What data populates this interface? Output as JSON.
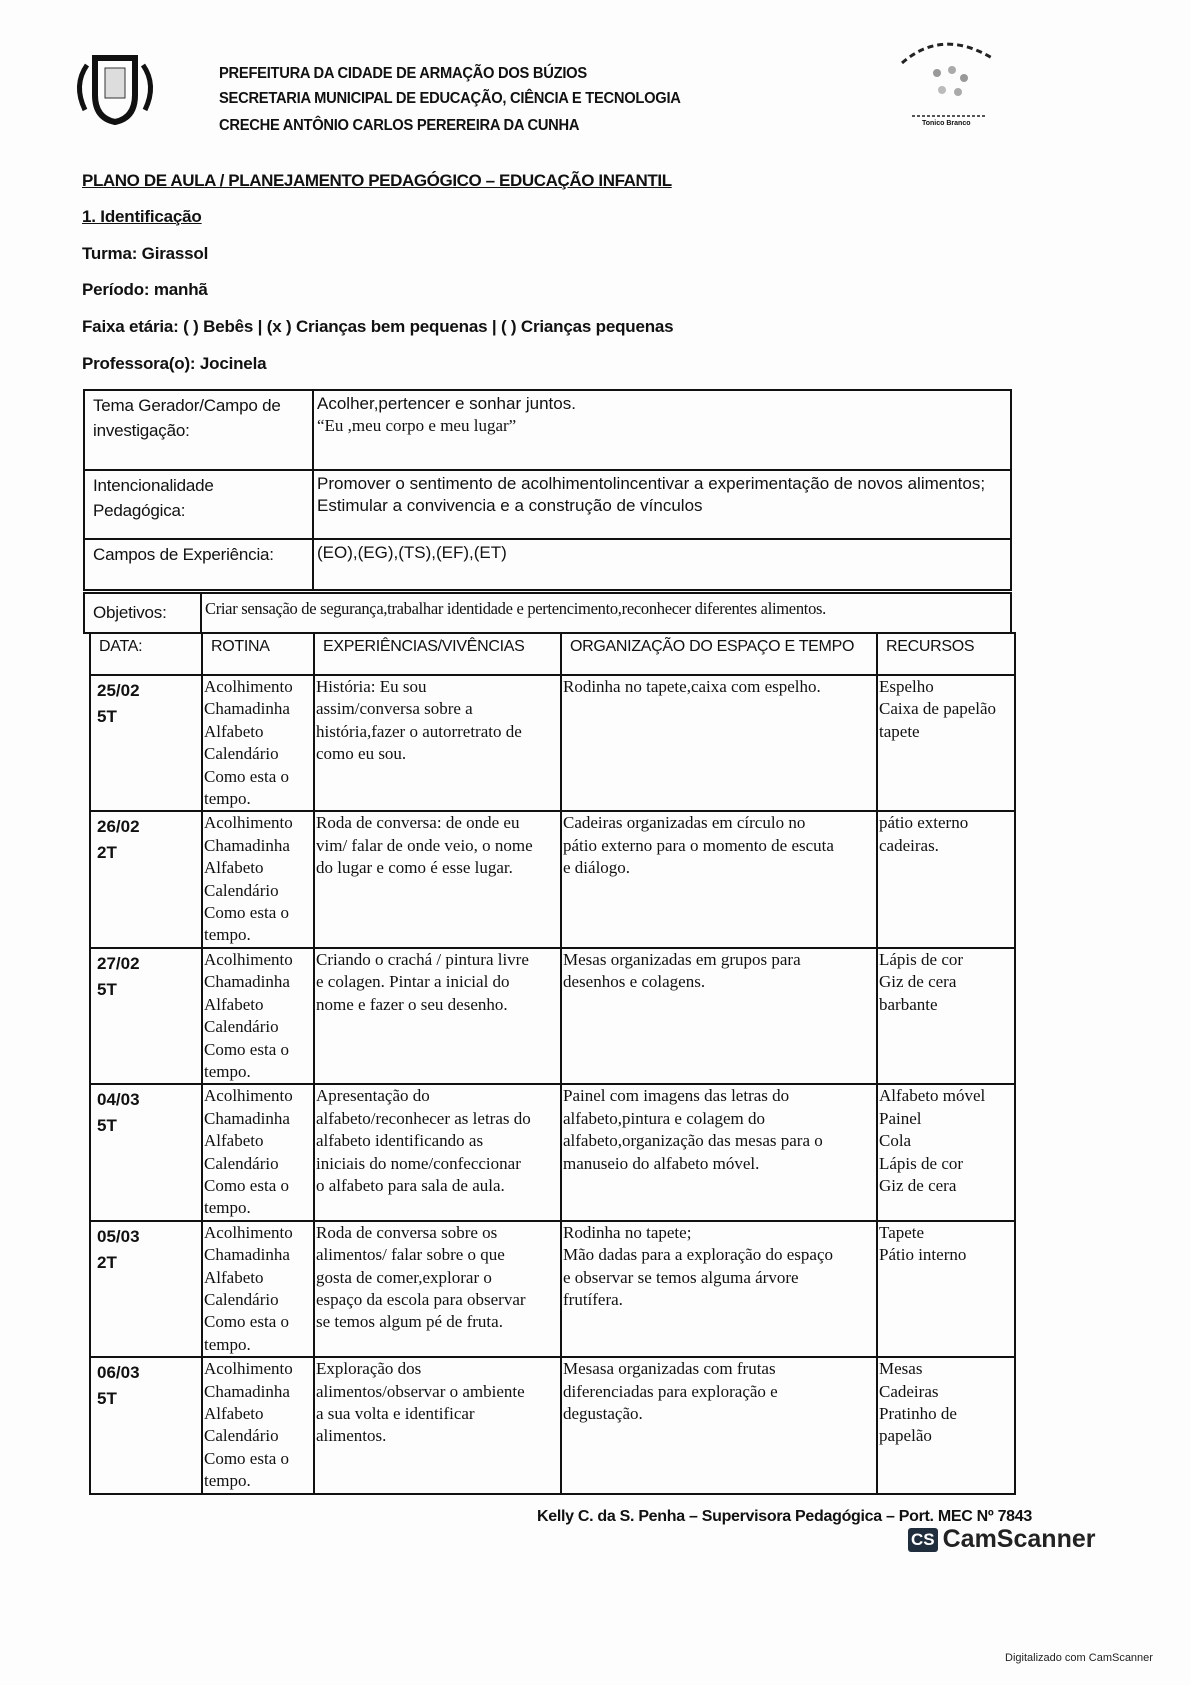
{
  "header": {
    "lines": [
      "PREFEITURA DA CIDADE DE ARMAÇÃO DOS BÚZIOS",
      "SECRETARIA MUNICIPAL DE EDUCAÇÃO, CIÊNCIA E TECNOLOGIA",
      "CRECHE ANTÔNIO CARLOS PEREREIRA DA CUNHA"
    ],
    "right_logo_text": "Tonico Branco"
  },
  "title": "PLANO DE AULA / PLANEJAMENTO PEDAGÓGICO – EDUCAÇÃO INFANTIL",
  "identificacao": {
    "heading": "1. Identificação",
    "turma": "Turma:  Girassol",
    "periodo": "Período:  manhã",
    "faixa": "Faixa etária: ( ) Bebês | (x  ) Crianças bem pequenas | ( ) Crianças pequenas",
    "professora": "Professora(o): Jocinela"
  },
  "info": {
    "tema_label": "Tema Gerador/Campo de investigação:",
    "tema_line1": "Acolher,pertencer e sonhar juntos.",
    "tema_line2": "“Eu ,meu corpo e meu lugar”",
    "intenc_label": "Intencionalidade Pedagógica:",
    "intenc_line1": "Promover o sentimento de acolhimentolincentivar a experimentação de novos alimentos;",
    "intenc_line2": "Estimular a convivencia e a construção de vínculos",
    "campos_label": "Campos de Experiência:",
    "campos_value": "(EO),(EG),(TS),(EF),(ET)",
    "objetivos_label": "Objetivos:",
    "objetivos_value": "Criar sensação de segurança,trabalhar identidade e pertencimento,reconhecer diferentes alimentos."
  },
  "table": {
    "headers": [
      "DATA:",
      "ROTINA",
      "EXPERIÊNCIAS/VIVÊNCIAS",
      "ORGANIZAÇÃO DO ESPAÇO E TEMPO",
      "RECURSOS"
    ],
    "rows": [
      {
        "date": "25/02\n5T",
        "rotina": "Acolhimento\nChamadinha\nAlfabeto\nCalendário\nComo esta o\ntempo.",
        "exp": "História: Eu sou\nassim/conversa sobre a\nhistória,fazer o autorretrato de\ncomo eu sou.",
        "org": "Rodinha no tapete,caixa com espelho.",
        "rec": "Espelho\nCaixa de papelão\ntapete"
      },
      {
        "date": "26/02\n2T",
        "rotina": "Acolhimento\nChamadinha\nAlfabeto\nCalendário\nComo esta o\ntempo.",
        "exp": "Roda de conversa: de onde eu\nvim/ falar de onde veio, o nome\ndo lugar e como é esse lugar.",
        "org": "Cadeiras organizadas em círculo no\npátio externo para o momento de escuta\ne diálogo.",
        "rec": "pátio externo\ncadeiras."
      },
      {
        "date": "27/02\n5T",
        "rotina": "Acolhimento\nChamadinha\nAlfabeto\nCalendário\nComo esta o\ntempo.",
        "exp": "Criando o crachá / pintura livre\ne colagen. Pintar a inicial do\nnome e fazer o seu desenho.",
        "org": "Mesas organizadas em grupos para\ndesenhos e colagens.",
        "rec": "Lápis de cor\nGiz de cera\nbarbante"
      },
      {
        "date": "04/03\n5T",
        "rotina": "Acolhimento\nChamadinha\nAlfabeto\nCalendário\nComo esta o\ntempo.",
        "exp": "Apresentação do\nalfabeto/reconhecer as letras do\nalfabeto identificando as\niniciais do nome/confeccionar\no alfabeto para sala de aula.",
        "org": "Painel com imagens das letras do\nalfabeto,pintura e colagem do\nalfabeto,organização das mesas para o\nmanuseio do alfabeto móvel.",
        "rec": "Alfabeto móvel\nPainel\nCola\nLápis de cor\nGiz de cera"
      },
      {
        "date": "05/03\n2T",
        "rotina": "Acolhimento\nChamadinha\nAlfabeto\nCalendário\nComo esta o\ntempo.",
        "exp": "Roda de conversa sobre os\nalimentos/ falar sobre o que\ngosta de comer,explorar o\nespaço da escola para observar\nse temos algum pé de fruta.",
        "org": "Rodinha no tapete;\nMão dadas para a exploração do espaço\ne observar se temos alguma árvore\nfrutífera.",
        "rec": "Tapete\nPátio interno"
      },
      {
        "date": "06/03\n5T",
        "rotina": "Acolhimento\nChamadinha\nAlfabeto\nCalendário\nComo esta o\ntempo.",
        "exp": "Exploração dos\nalimentos/observar o ambiente\na sua volta e identificar\nalimentos.",
        "org": "Mesasa organizadas com frutas\ndiferenciadas para exploração e\ndegustação.",
        "rec": "Mesas\nCadeiras\nPratinho de\npapelão"
      }
    ]
  },
  "footer": {
    "signature": "Kelly C. da S. Penha – Supervisora Pedagógica – Port. MEC Nº 7843",
    "cs_badge": "CS",
    "cs_brand": "CamScanner",
    "digitalizado": "Digitalizado com CamScanner"
  }
}
